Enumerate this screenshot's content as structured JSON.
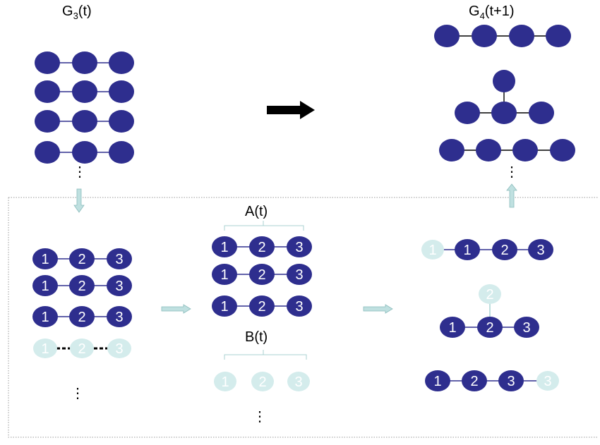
{
  "colors": {
    "node": "#2e2e8e",
    "node_light": "#d4ecec",
    "edge_light": "#a8d2d2",
    "arrow_light": "#bfe0e0"
  },
  "labels": {
    "g3": {
      "main": "G",
      "sub": "3",
      "tail": "(t)"
    },
    "g4": {
      "main": "G",
      "sub": "4",
      "tail": "(t+1)"
    },
    "a": "A(t)",
    "b": "B(t)"
  },
  "node_numbers": [
    "1",
    "2",
    "3"
  ],
  "ellipsis": "⋮"
}
